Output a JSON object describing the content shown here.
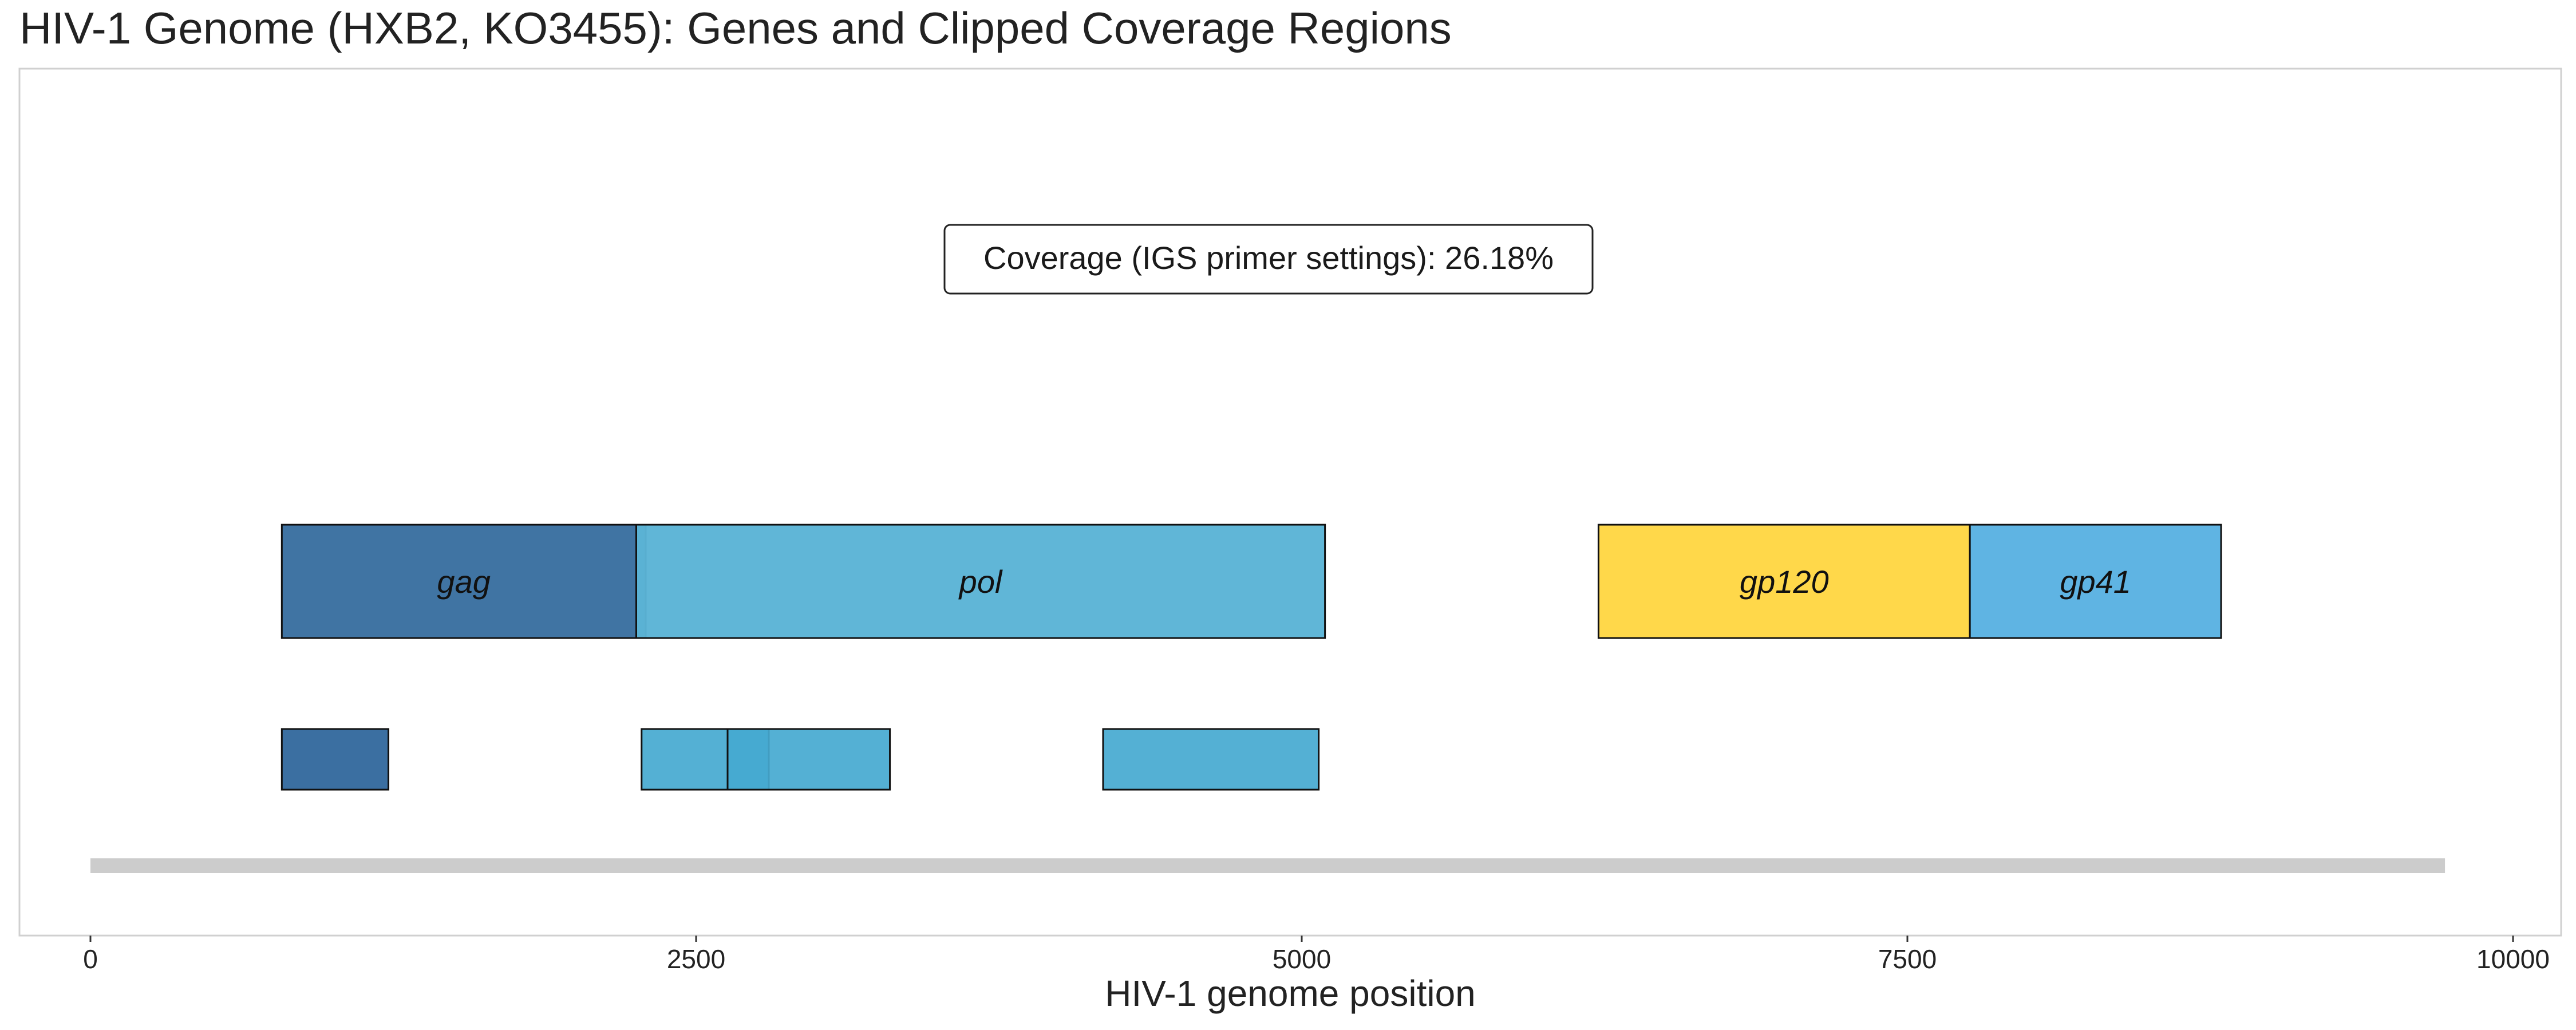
{
  "chart_data": {
    "type": "bar",
    "title": "HIV-1 Genome (HXB2, KO3455): Genes and Clipped Coverage Regions",
    "xlabel": "HIV-1 genome position",
    "ylabel": "",
    "xlim": [
      0,
      10000
    ],
    "xticks": [
      0,
      2500,
      5000,
      7500,
      10000
    ],
    "grid": false,
    "annotation": "Coverage (IGS primer settings): 26.18%",
    "genome_bar": {
      "start": 0,
      "end": 9719,
      "color": "#cccccc"
    },
    "genes": [
      {
        "name": "gag",
        "start": 790,
        "end": 2292,
        "color": "#3a6fa0"
      },
      {
        "name": "pol",
        "start": 2253,
        "end": 5096,
        "color": "#5bb4d6"
      },
      {
        "name": "gp120",
        "start": 6225,
        "end": 7758,
        "color": "#ffd744"
      },
      {
        "name": "gp41",
        "start": 7758,
        "end": 8795,
        "color": "#5ab2e2"
      }
    ],
    "coverage_regions": [
      {
        "start": 790,
        "end": 1230,
        "color": "#2a6399"
      },
      {
        "start": 2275,
        "end": 2800,
        "color": "#45a9d0"
      },
      {
        "start": 2630,
        "end": 3300,
        "color": "#45a9d0"
      },
      {
        "start": 4180,
        "end": 5070,
        "color": "#45a9d0"
      }
    ]
  }
}
